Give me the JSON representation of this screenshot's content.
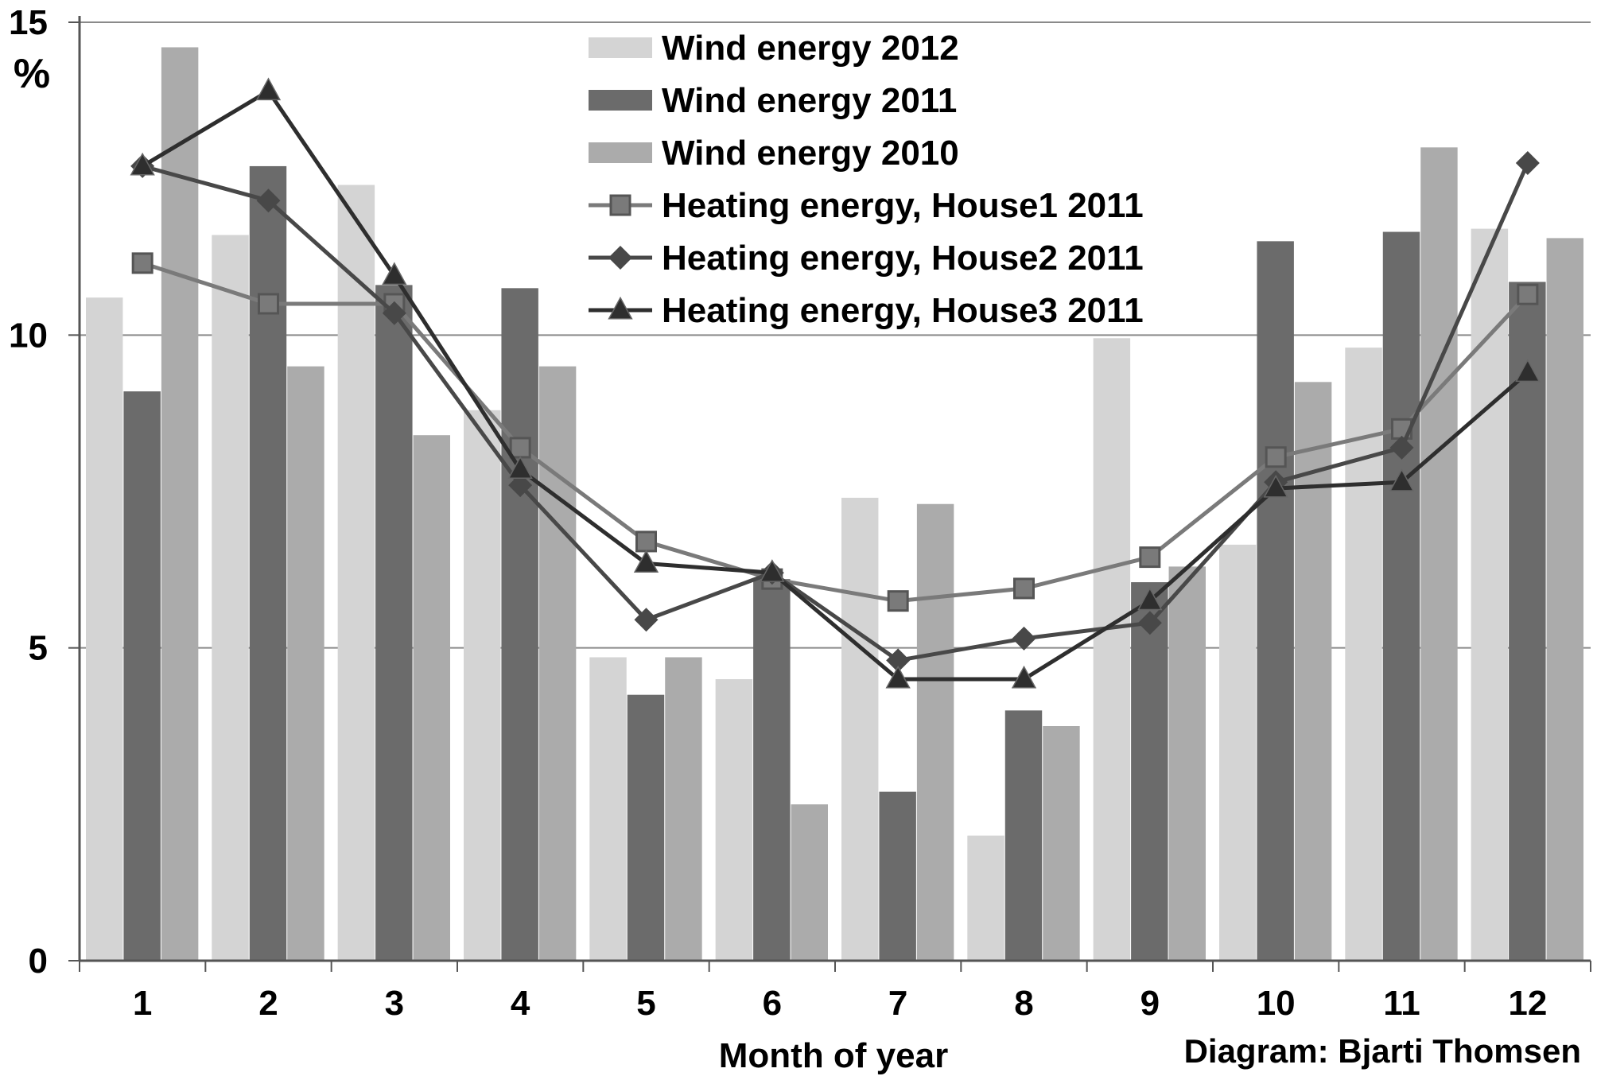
{
  "chart_data": {
    "type": "bar",
    "ylabel": "%",
    "xlabel": "Month of year",
    "credit": "Diagram: Bjarti Thomsen",
    "ylim": [
      0,
      15
    ],
    "yticks": [
      "0",
      "5",
      "10",
      "15"
    ],
    "grid": true,
    "legend_position": "top-center",
    "categories": [
      "1",
      "2",
      "3",
      "4",
      "5",
      "6",
      "7",
      "8",
      "9",
      "10",
      "11",
      "12"
    ],
    "bar_series": [
      {
        "name": "Wind energy 2012",
        "color": "#d4d4d4",
        "values": [
          10.6,
          11.6,
          12.4,
          8.8,
          4.85,
          4.5,
          7.4,
          2.0,
          9.95,
          6.65,
          9.8,
          11.7
        ]
      },
      {
        "name": "Wind energy 2011",
        "color": "#6b6b6b",
        "values": [
          9.1,
          12.7,
          10.8,
          10.75,
          4.25,
          6.1,
          2.7,
          4.0,
          6.05,
          11.5,
          11.65,
          10.85
        ]
      },
      {
        "name": "Wind energy 2010",
        "color": "#ababab",
        "values": [
          14.6,
          9.5,
          8.4,
          9.5,
          4.85,
          2.5,
          7.3,
          3.75,
          6.3,
          9.25,
          13.0,
          11.55
        ]
      }
    ],
    "line_series": [
      {
        "name": "Heating energy, House1 2011",
        "marker": "square",
        "color": "#7a7a7a",
        "values": [
          11.15,
          10.5,
          10.5,
          8.2,
          6.7,
          6.1,
          5.75,
          5.95,
          6.45,
          8.05,
          8.5,
          10.65
        ]
      },
      {
        "name": "Heating energy, House2 2011",
        "marker": "diamond",
        "color": "#484848",
        "values": [
          12.7,
          12.15,
          10.35,
          7.6,
          5.45,
          6.2,
          4.8,
          5.15,
          5.4,
          7.65,
          8.2,
          12.75
        ]
      },
      {
        "name": "Heating energy, House3 2011",
        "marker": "triangle",
        "color": "#2e2e2e",
        "values": [
          12.7,
          13.9,
          10.95,
          7.85,
          6.35,
          6.2,
          4.5,
          4.5,
          5.75,
          7.55,
          7.65,
          9.4
        ]
      }
    ]
  }
}
